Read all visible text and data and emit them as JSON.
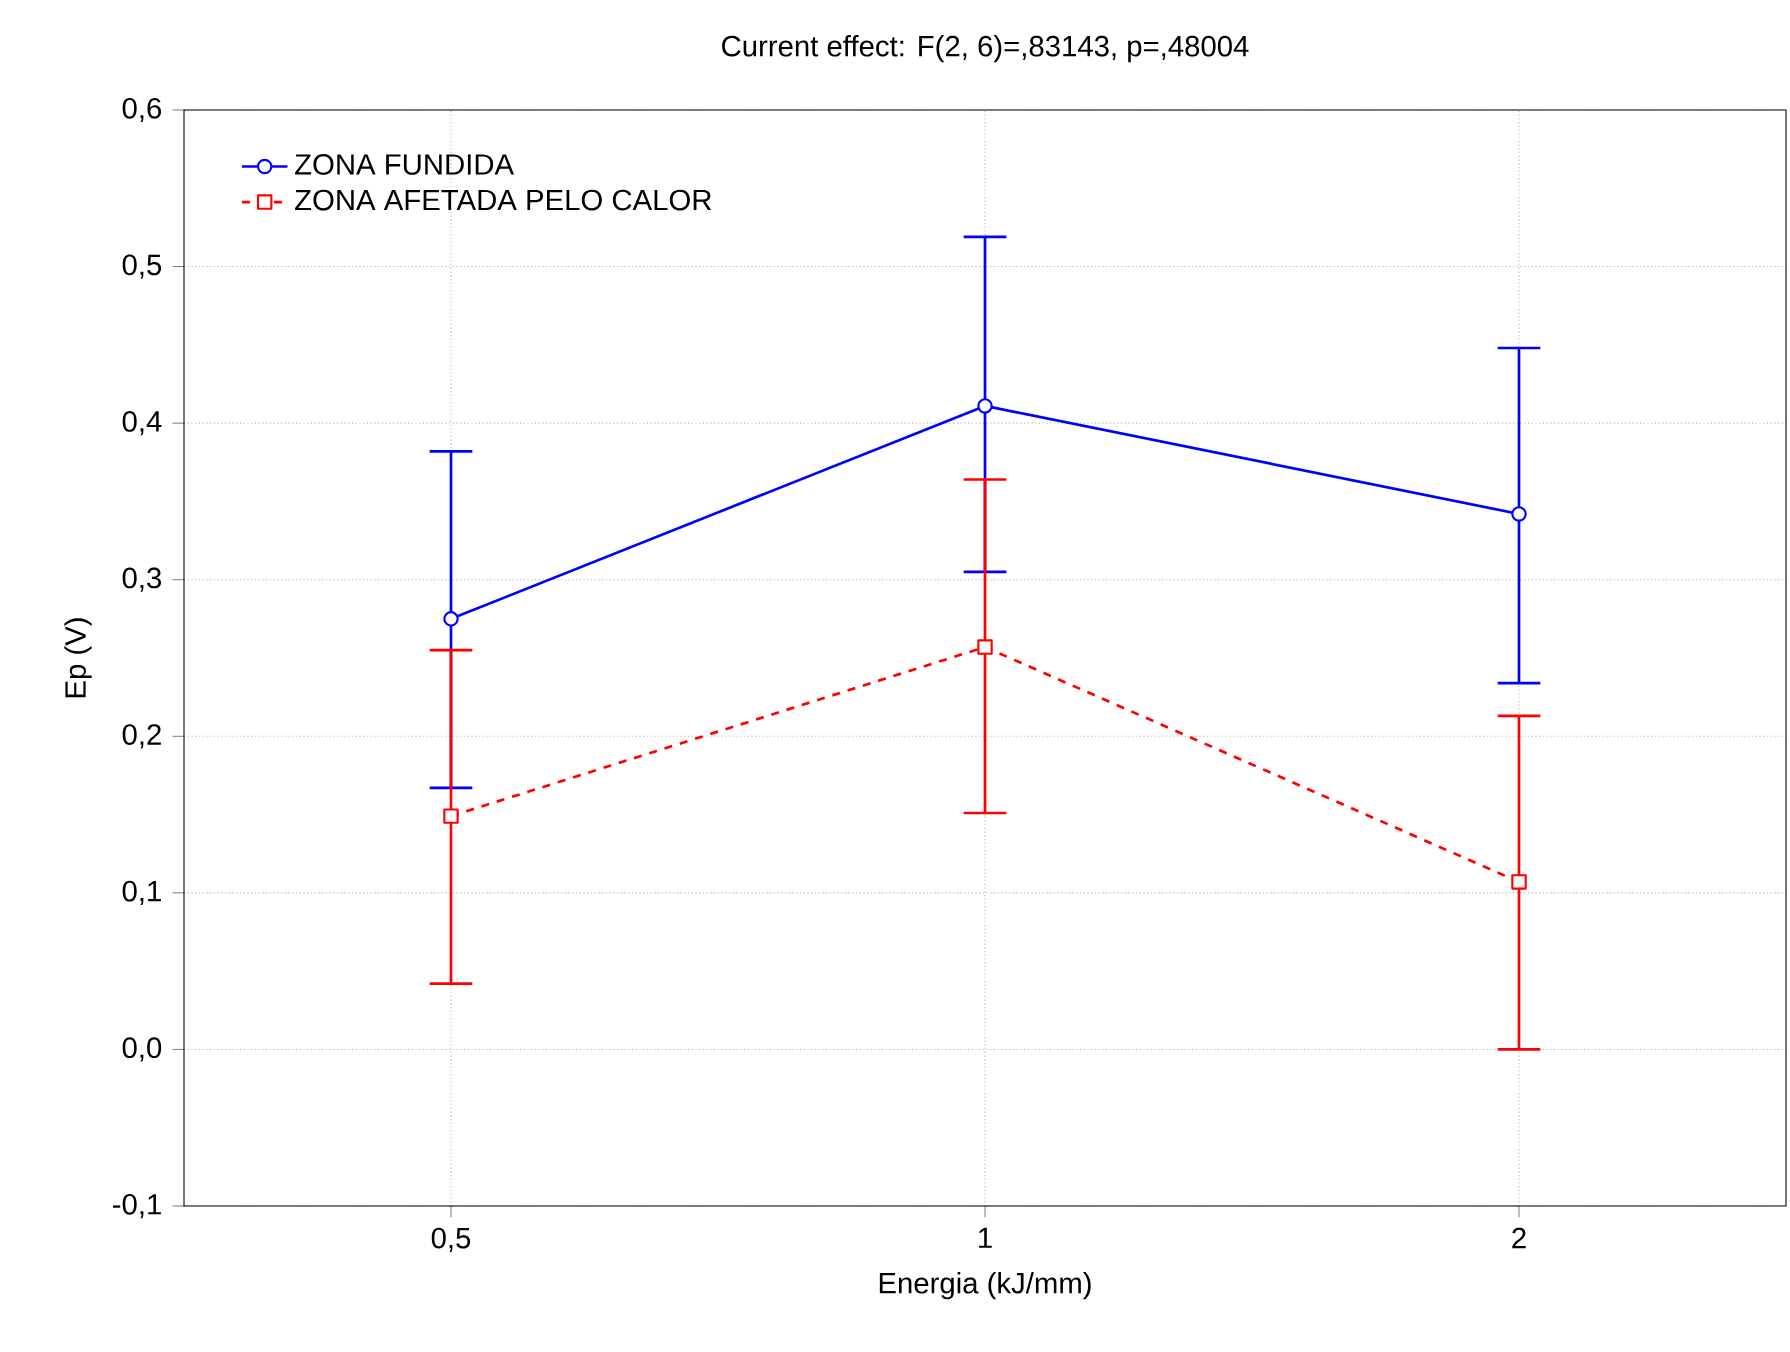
{
  "chart_data": {
    "type": "line",
    "title": "Current effect: F(2, 6)=,83143, p=,48004",
    "xlabel": "Energia (kJ/mm)",
    "ylabel": "Ep (V)",
    "categories": [
      "0,5",
      "1",
      "2"
    ],
    "series": [
      {
        "name": "ZONA FUNDIDA",
        "color": "#0000ff",
        "marker": "circle",
        "line_style": "solid",
        "values": [
          0.275,
          0.411,
          0.342
        ],
        "errors": [
          [
            0.167,
            0.382
          ],
          [
            0.305,
            0.519
          ],
          [
            0.234,
            0.448
          ]
        ]
      },
      {
        "name": "ZONA AFETADA PELO CALOR",
        "color": "#ff0000",
        "marker": "square",
        "line_style": "dashed",
        "values": [
          0.149,
          0.257,
          0.107
        ],
        "errors": [
          [
            0.042,
            0.255
          ],
          [
            0.151,
            0.364
          ],
          [
            0.0,
            0.213
          ]
        ]
      }
    ],
    "ylim": [
      -0.1,
      0.6
    ],
    "yticks": [
      {
        "value": -0.1,
        "label": "-0,1"
      },
      {
        "value": 0.0,
        "label": "0,0"
      },
      {
        "value": 0.1,
        "label": "0,1"
      },
      {
        "value": 0.2,
        "label": "0,2"
      },
      {
        "value": 0.3,
        "label": "0,3"
      },
      {
        "value": 0.4,
        "label": "0,4"
      },
      {
        "value": 0.5,
        "label": "0,5"
      },
      {
        "value": 0.6,
        "label": "0,6"
      }
    ],
    "grid": true,
    "legend": "top left"
  }
}
